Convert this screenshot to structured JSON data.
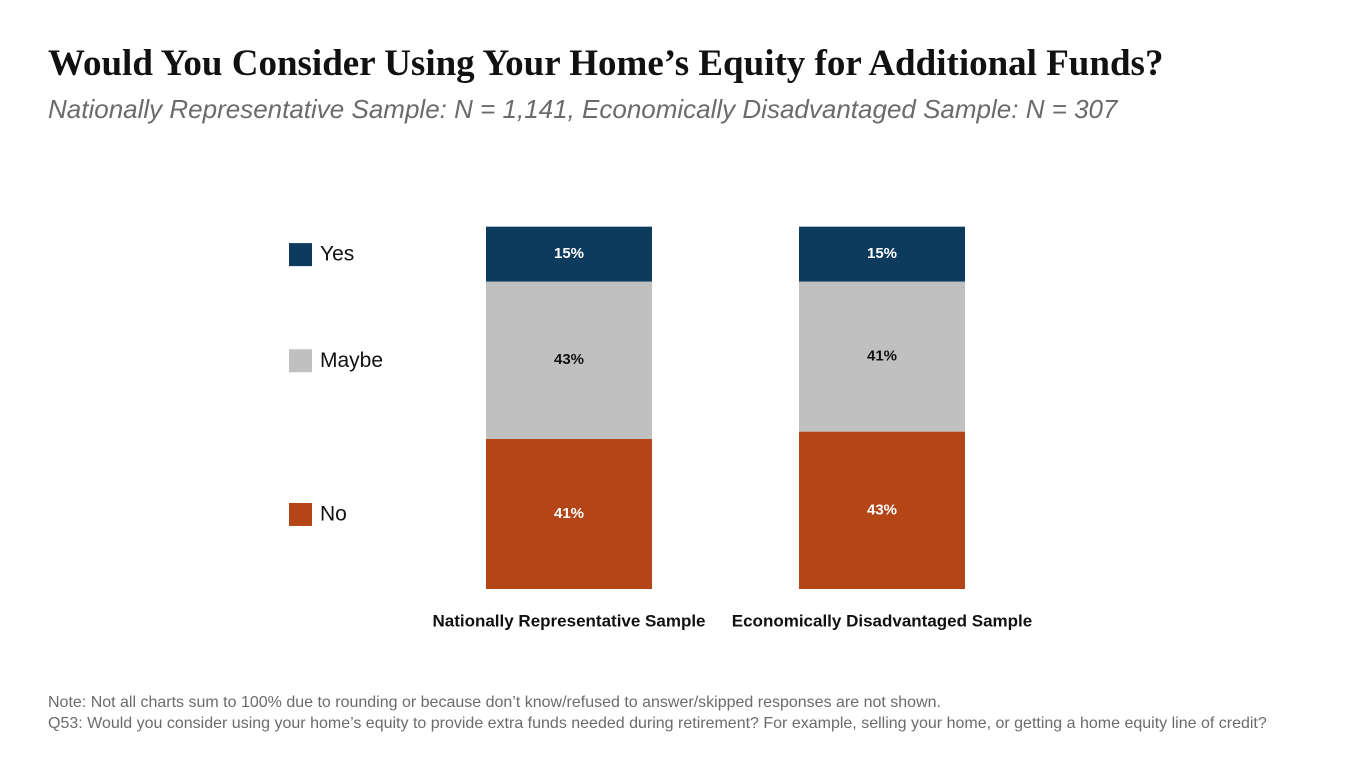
{
  "chart_data": {
    "type": "stacked-bar",
    "title": "Would You Consider Using Your Home’s Equity for Additional Funds?",
    "subtitle": "Nationally Representative Sample: N = 1,141, Economically Disadvantaged Sample: N = 307",
    "categories": [
      "Nationally Representative Sample",
      "Economically Disadvantaged Sample"
    ],
    "series": [
      {
        "name": "Yes",
        "color": "#0d3b5e",
        "values": [
          15,
          15
        ],
        "value_labels": [
          "15%",
          "15%"
        ]
      },
      {
        "name": "Maybe",
        "color": "#c0c0c0",
        "values": [
          43,
          41
        ],
        "value_labels": [
          "43%",
          "41%"
        ]
      },
      {
        "name": "No",
        "color": "#b34516",
        "values": [
          41,
          43
        ],
        "value_labels": [
          "41%",
          "43%"
        ]
      }
    ],
    "notes": [
      "Note: Not all charts sum to 100% due to rounding or because don’t know/refused to answer/skipped responses are not shown.",
      "Q53: Would you consider using your home’s equity to provide extra funds needed during retirement? For example, selling your home, or getting a home equity line of credit?"
    ]
  }
}
